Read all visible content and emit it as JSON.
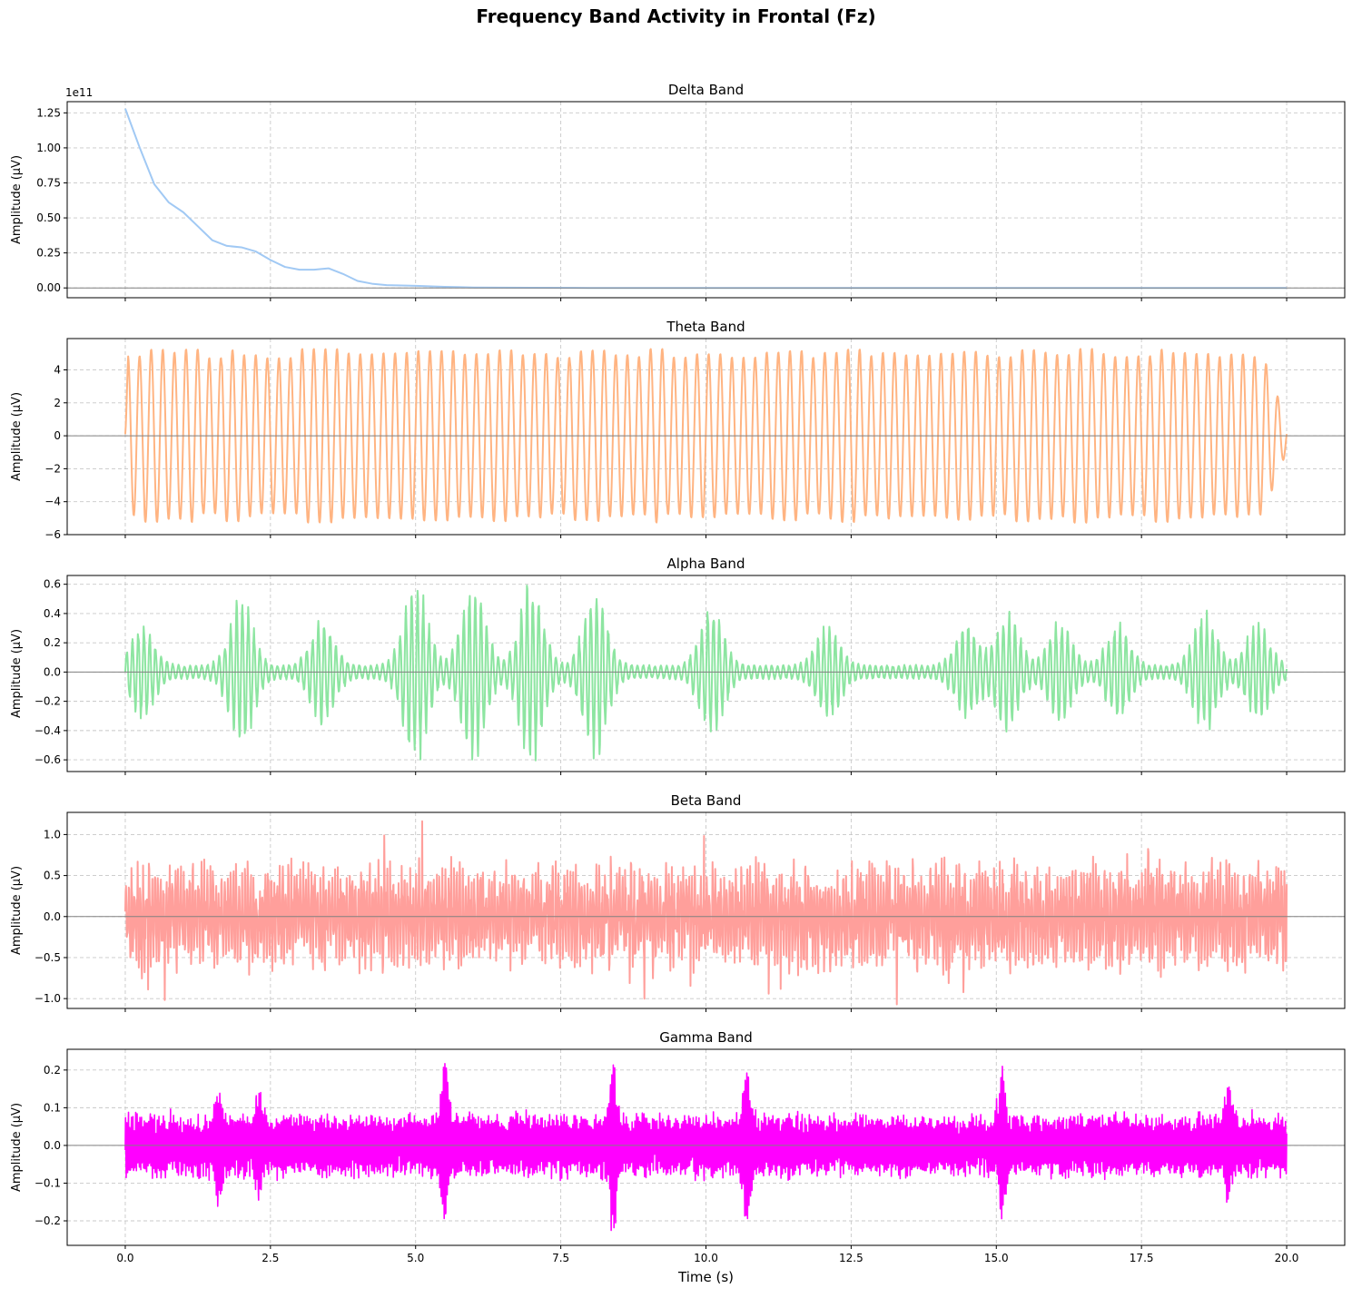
{
  "title": "Frequency Band Activity in Frontal (Fz)",
  "chart_data": {
    "type": "line",
    "x_label": "Time (s)",
    "x_range": [
      0,
      20
    ],
    "x_ticks": [
      "0.0",
      "2.5",
      "5.0",
      "7.5",
      "10.0",
      "12.5",
      "15.0",
      "17.5",
      "20.0"
    ],
    "x_tick_values": [
      0,
      2.5,
      5,
      7.5,
      10,
      12.5,
      15,
      17.5,
      20
    ],
    "grid": true,
    "panels": [
      {
        "title": "Delta Band",
        "ylabel": "Amplitude (µV)",
        "color": "#a1c9f4",
        "offset_text": "1e11",
        "y_ticks": [
          "0.00",
          "0.25",
          "0.50",
          "0.75",
          "1.00",
          "1.25"
        ],
        "y_tick_values": [
          0,
          0.25,
          0.5,
          0.75,
          1.0,
          1.25
        ],
        "ylim": [
          -0.07,
          1.33
        ],
        "points": [
          [
            0,
            1.28
          ],
          [
            0.25,
            1.0
          ],
          [
            0.5,
            0.74
          ],
          [
            0.75,
            0.61
          ],
          [
            1.0,
            0.54
          ],
          [
            1.25,
            0.44
          ],
          [
            1.5,
            0.34
          ],
          [
            1.75,
            0.3
          ],
          [
            2.0,
            0.29
          ],
          [
            2.25,
            0.26
          ],
          [
            2.5,
            0.2
          ],
          [
            2.75,
            0.15
          ],
          [
            3.0,
            0.13
          ],
          [
            3.25,
            0.13
          ],
          [
            3.5,
            0.14
          ],
          [
            3.75,
            0.1
          ],
          [
            4.0,
            0.05
          ],
          [
            4.25,
            0.03
          ],
          [
            4.5,
            0.02
          ],
          [
            5.0,
            0.015
          ],
          [
            5.5,
            0.008
          ],
          [
            6.0,
            0.003
          ],
          [
            7.0,
            0.001
          ],
          [
            8.0,
            0.0
          ],
          [
            20.0,
            0.0
          ]
        ]
      },
      {
        "title": "Theta Band",
        "ylabel": "Amplitude (µV)",
        "color": "#ffb482",
        "offset_text": "",
        "y_ticks": [
          "−6",
          "−4",
          "−2",
          "0",
          "2",
          "4"
        ],
        "y_tick_values": [
          -6,
          -4,
          -2,
          0,
          2,
          4
        ],
        "ylim": [
          -6.0,
          5.9
        ],
        "signal": {
          "freq": 5.0,
          "amplitude": 5.0,
          "amp_jitter": 0.3,
          "end_fade": 19.6,
          "seed": 7
        }
      },
      {
        "title": "Alpha Band",
        "ylabel": "Amplitude (µV)",
        "color": "#8de5a1",
        "offset_text": "",
        "y_ticks": [
          "−0.6",
          "−0.4",
          "−0.2",
          "0.0",
          "0.2",
          "0.4",
          "0.6"
        ],
        "y_tick_values": [
          -0.6,
          -0.4,
          -0.2,
          0,
          0.2,
          0.4,
          0.6
        ],
        "ylim": [
          -0.68,
          0.66
        ],
        "signal": {
          "freq": 10.0,
          "amplitude": 0.6,
          "envelope_bumps": [
            [
              0.3,
              0.3
            ],
            [
              2.0,
              0.48
            ],
            [
              3.4,
              0.33
            ],
            [
              5.0,
              0.6
            ],
            [
              6.0,
              0.6
            ],
            [
              7.0,
              0.62
            ],
            [
              8.1,
              0.55
            ],
            [
              10.1,
              0.42
            ],
            [
              12.1,
              0.3
            ],
            [
              14.5,
              0.3
            ],
            [
              15.2,
              0.38
            ],
            [
              16.1,
              0.32
            ],
            [
              17.1,
              0.3
            ],
            [
              18.6,
              0.38
            ],
            [
              19.5,
              0.3
            ]
          ],
          "seed": 11
        }
      },
      {
        "title": "Beta Band",
        "ylabel": "Amplitude (µV)",
        "color": "#ff9f9b",
        "offset_text": "",
        "y_ticks": [
          "−1.0",
          "−0.5",
          "0.0",
          "0.5",
          "1.0"
        ],
        "y_tick_values": [
          -1.0,
          -0.5,
          0,
          0.5,
          1.0
        ],
        "ylim": [
          -1.12,
          1.27
        ],
        "signal": {
          "freq": 20.0,
          "amplitude": 0.45,
          "noise": 0.5,
          "peak": 1.18,
          "trough": -1.07,
          "seed": 23
        }
      },
      {
        "title": "Gamma Band",
        "ylabel": "Amplitude (µV)",
        "color": "#ff00ff",
        "offset_text": "",
        "y_ticks": [
          "−0.2",
          "−0.1",
          "0.0",
          "0.1",
          "0.2"
        ],
        "y_tick_values": [
          -0.2,
          -0.1,
          0,
          0.1,
          0.2
        ],
        "ylim": [
          -0.265,
          0.255
        ],
        "signal": {
          "freq": 40.0,
          "amplitude": 0.09,
          "noise": 0.06,
          "bursts": [
            [
              1.6,
              0.17
            ],
            [
              2.3,
              0.16
            ],
            [
              5.5,
              0.22
            ],
            [
              8.4,
              0.24
            ],
            [
              10.7,
              0.21
            ],
            [
              15.1,
              0.19
            ],
            [
              19.0,
              0.17
            ]
          ],
          "peak": 0.24,
          "trough": -0.24,
          "seed": 31
        }
      }
    ]
  }
}
